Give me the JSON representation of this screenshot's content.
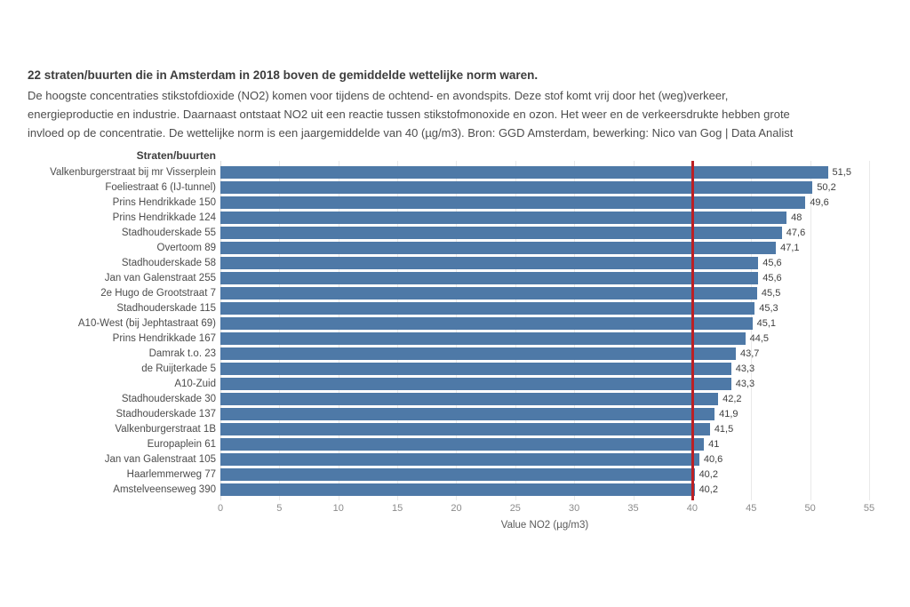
{
  "header": {
    "title": "22 straten/buurten die in Amsterdam in 2018 boven de gemiddelde wettelijke norm waren.",
    "subtitle_lines": [
      "De hoogste concentraties stikstofdioxide (NO2) komen voor tijdens de ochtend- en avondspits. Deze stof komt vrij door het (weg)verkeer,",
      "energieproductie en industrie. Daarnaast ontstaat NO2 uit een reactie tussen stikstofmonoxide en ozon. Het weer en de verkeersdrukte hebben grote",
      "invloed op de concentratie. De wettelijke norm is een jaargemiddelde van 40 (µg/m3). Bron: GGD Amsterdam, bewerking: Nico van Gog | Data Analist"
    ]
  },
  "chart_data": {
    "type": "bar",
    "orientation": "horizontal",
    "row_header": "Straten/buurten",
    "categories": [
      "Valkenburgerstraat bij mr Visserplein",
      "Foeliestraat 6 (IJ-tunnel)",
      "Prins Hendrikkade 150",
      "Prins Hendrikkade 124",
      "Stadhouderskade 55",
      "Overtoom 89",
      "Stadhouderskade 58",
      "Jan van Galenstraat 255",
      "2e Hugo de Grootstraat 7",
      "Stadhouderskade 115",
      "A10-West (bij Jephtastraat 69)",
      "Prins Hendrikkade 167",
      "Damrak t.o. 23",
      "de Ruijterkade 5",
      "A10-Zuid",
      "Stadhouderskade 30",
      "Stadhouderskade 137",
      "Valkenburgerstraat 1B",
      "Europaplein 61",
      "Jan van Galenstraat 105",
      "Haarlemmerweg 77",
      "Amstelveenseweg 390"
    ],
    "values": [
      51.5,
      50.2,
      49.6,
      48,
      47.6,
      47.1,
      45.6,
      45.6,
      45.5,
      45.3,
      45.1,
      44.5,
      43.7,
      43.3,
      43.3,
      42.2,
      41.9,
      41.5,
      41,
      40.6,
      40.2,
      40.2
    ],
    "value_labels": [
      "51,5",
      "50,2",
      "49,6",
      "48",
      "47,6",
      "47,1",
      "45,6",
      "45,6",
      "45,5",
      "45,3",
      "45,1",
      "44,5",
      "43,7",
      "43,3",
      "43,3",
      "42,2",
      "41,9",
      "41,5",
      "41",
      "40,6",
      "40,2",
      "40,2"
    ],
    "xlabel": "Value NO2 (µg/m3)",
    "x_ticks": [
      0,
      5,
      10,
      15,
      20,
      25,
      30,
      35,
      40,
      45,
      50,
      55
    ],
    "xlim": [
      0,
      55
    ],
    "reference_line": {
      "value": 40
    },
    "grid": true,
    "legend": false
  },
  "colors": {
    "bar": "#4e79a7",
    "reference_line": "#bb2025",
    "grid": "#e9e9e9",
    "title_text": "#3d3d3d",
    "body_text": "#4d4d4d",
    "tick_text": "#8b8b8b"
  }
}
